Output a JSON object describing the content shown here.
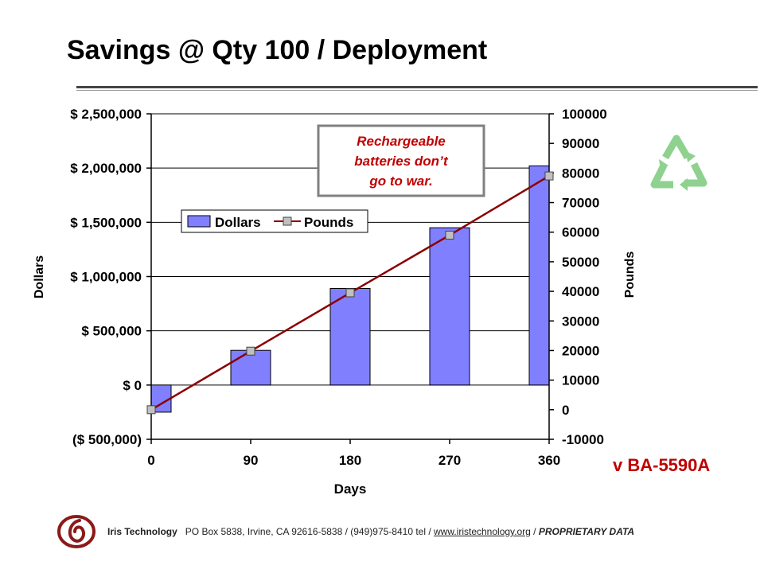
{
  "title": "Savings @ Qty 100 / Deployment",
  "model": "v BA-5590A",
  "annotation": [
    "Rechargeable",
    "batteries don’t",
    "go to war."
  ],
  "footer": {
    "company": "Iris Technology",
    "address": "PO Box 5838, Irvine, CA  92616-5838  / (949)975-8410  tel / ",
    "website": "www.iristechnology.org",
    "separator": " / ",
    "proprietary": "PROPRIETARY DATA"
  },
  "colors": {
    "bar_fill": "#8080ff",
    "line": "#8b0000",
    "marker": "#c0c0c0",
    "model_text": "#c00000",
    "annotation_text": "#c00000",
    "recycle": "#8fd18f",
    "logo": "#8b1a1a"
  },
  "icons": {
    "logo": "iris-logo-icon",
    "recycle": "recycle-icon"
  },
  "chart_data": {
    "type": "bar",
    "xlabel": "Days",
    "ylabel": "Dollars",
    "y2label": "Pounds",
    "x": [
      0,
      90,
      180,
      270,
      360
    ],
    "xlim": [
      0,
      360
    ],
    "ylim": [
      -500000,
      2500000
    ],
    "y_ticks": [
      2500000,
      2000000,
      1500000,
      1000000,
      500000,
      0,
      -500000
    ],
    "y_tick_labels": [
      "$ 2,500,000",
      "$ 2,000,000",
      "$ 1,500,000",
      "$ 1,000,000",
      "$ 500,000",
      "$ 0",
      "($ 500,000)"
    ],
    "y2lim": [
      -10000,
      100000
    ],
    "y2_ticks": [
      100000,
      90000,
      80000,
      70000,
      60000,
      50000,
      40000,
      30000,
      20000,
      10000,
      0,
      -10000
    ],
    "y2_tick_labels": [
      "100000",
      "90000",
      "80000",
      "70000",
      "60000",
      "50000",
      "40000",
      "30000",
      "20000",
      "10000",
      "0",
      "-10000"
    ],
    "grid": true,
    "legend_position": "center-left",
    "series": [
      {
        "name": "Dollars",
        "type": "bar",
        "axis": "left",
        "values": [
          -250000,
          320000,
          890000,
          1450000,
          2020000
        ]
      },
      {
        "name": "Pounds",
        "type": "line",
        "axis": "right",
        "values": [
          0,
          19800,
          39500,
          59000,
          79000
        ]
      }
    ]
  }
}
